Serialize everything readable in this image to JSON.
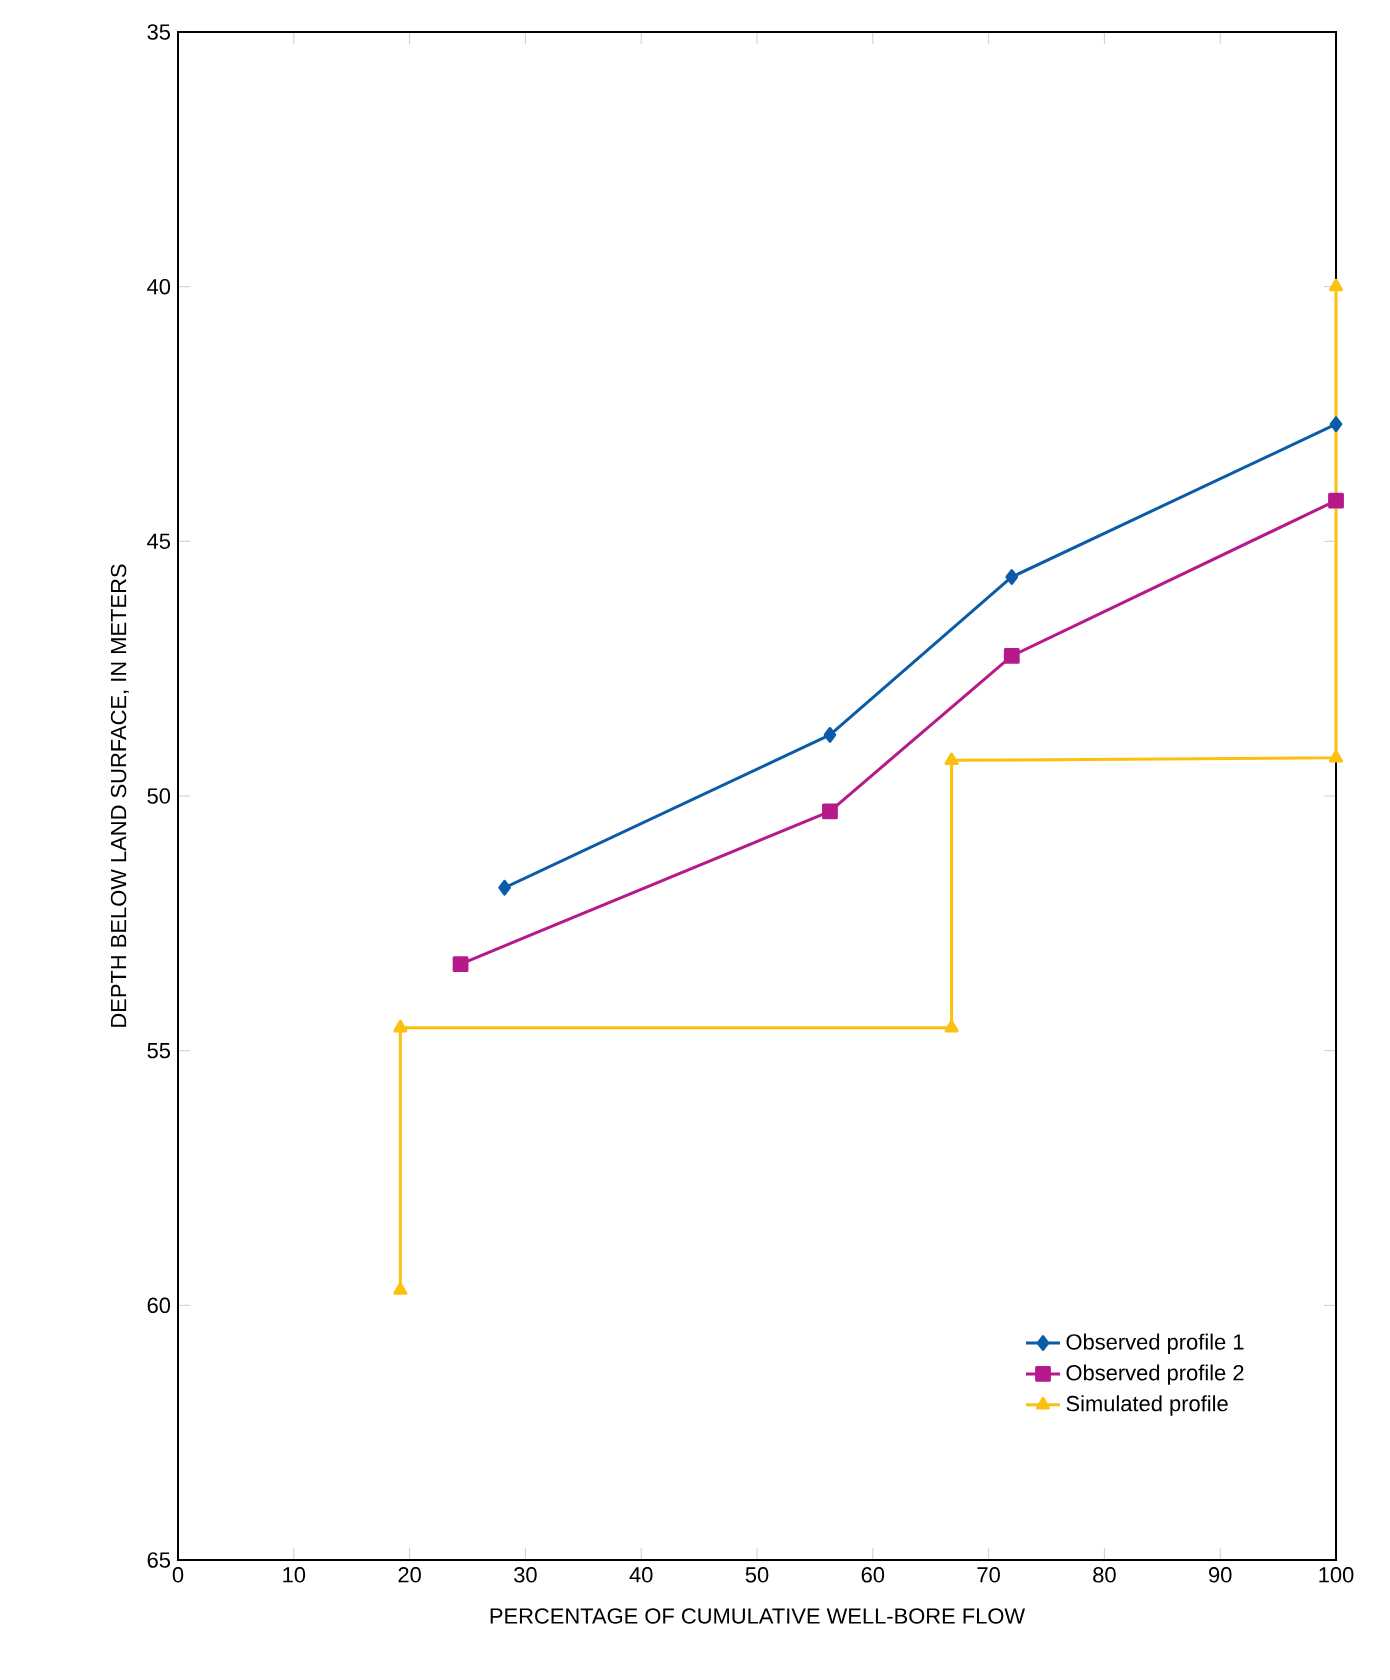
{
  "chart_data": {
    "type": "line",
    "xlabel": "PERCENTAGE OF CUMULATIVE WELL-BORE FLOW",
    "ylabel": "DEPTH BELOW LAND SURFACE, IN METERS",
    "xlim": [
      0,
      100
    ],
    "xticks": [
      0,
      10,
      20,
      30,
      40,
      50,
      60,
      70,
      80,
      90,
      100
    ],
    "ylim": [
      65,
      35
    ],
    "yticks": [
      35,
      40,
      45,
      50,
      55,
      60,
      65
    ],
    "grid": false,
    "legend": "bottom right",
    "series": [
      {
        "name": "Observed profile 1",
        "color": "#0a5ba8",
        "marker": "diamond",
        "x": [
          28.2,
          56.3,
          72.0,
          100
        ],
        "values": [
          51.8,
          48.8,
          45.7,
          42.7
        ]
      },
      {
        "name": "Observed profile 2",
        "color": "#b5198a",
        "marker": "square",
        "x": [
          24.4,
          56.3,
          72.0,
          100
        ],
        "values": [
          53.3,
          50.3,
          47.25,
          44.2
        ]
      },
      {
        "name": "Simulated profile",
        "color": "#fcc00f",
        "marker": "triangle",
        "x": [
          19.2,
          19.2,
          66.8,
          66.8,
          100,
          100
        ],
        "values": [
          59.7,
          54.55,
          54.55,
          49.3,
          49.25,
          40.0
        ]
      }
    ]
  }
}
